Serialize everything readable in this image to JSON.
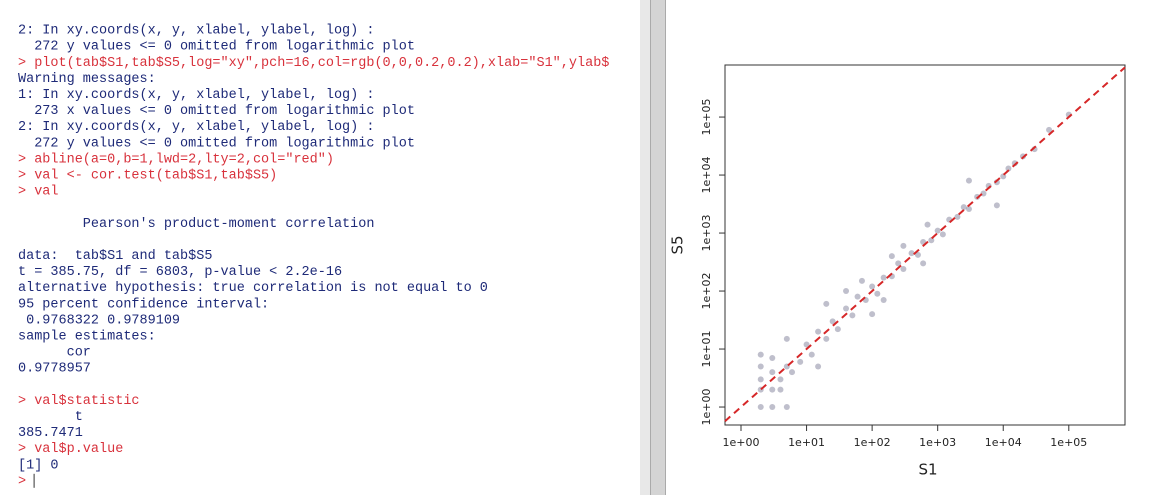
{
  "console": {
    "blocks": [
      [
        "2: In xy.coords(x, y, xlabel, ylabel, log) :",
        "  272 y values <= 0 omitted from logarithmic plot",
        "> plot(tab$S1,tab$S5,log=\"xy\",pch=16,col=rgb(0,0,0.2,0.2),xlab=\"S1\",ylab$",
        "Warning messages:",
        "1: In xy.coords(x, y, xlabel, ylabel, log) :",
        "  273 x values <= 0 omitted from logarithmic plot",
        "2: In xy.coords(x, y, xlabel, ylabel, log) :",
        "  272 y values <= 0 omitted from logarithmic plot",
        "> abline(a=0,b=1,lwd=2,lty=2,col=\"red\")",
        "> val <- cor.test(tab$S1,tab$S5)",
        "> val"
      ],
      [
        "        Pearson's product-moment correlation"
      ],
      [
        "data:  tab$S1 and tab$S5",
        "t = 385.75, df = 6803, p-value < 2.2e-16",
        "alternative hypothesis: true correlation is not equal to 0",
        "95 percent confidence interval:",
        " 0.9768322 0.9789109",
        "sample estimates:",
        "      cor",
        "0.9778957"
      ],
      [
        "> val$statistic",
        "       t",
        "385.7471",
        "> val$p.value",
        "[1] 0",
        ">"
      ]
    ]
  },
  "chart_data": {
    "type": "scatter",
    "xlabel": "S1",
    "ylabel": "S5",
    "log_x": true,
    "log_y": true,
    "color": "rgba(0,0,51,0.25)",
    "line_color": "#d62728",
    "xlim": [
      0.57,
      720000
    ],
    "ylim": [
      0.49,
      790000
    ],
    "xticks": [
      {
        "value": 1,
        "label": "1e+00"
      },
      {
        "value": 10,
        "label": "1e+01"
      },
      {
        "value": 100,
        "label": "1e+02"
      },
      {
        "value": 1000,
        "label": "1e+03"
      },
      {
        "value": 10000,
        "label": "1e+04"
      },
      {
        "value": 100000,
        "label": "1e+05"
      }
    ],
    "yticks": [
      {
        "value": 1,
        "label": "1e+00"
      },
      {
        "value": 10,
        "label": "1e+01"
      },
      {
        "value": 100,
        "label": "1e+02"
      },
      {
        "value": 1000,
        "label": "1e+03"
      },
      {
        "value": 10000,
        "label": "1e+04"
      },
      {
        "value": 100000,
        "label": "1e+05"
      }
    ],
    "x": [
      2,
      2,
      2,
      2,
      3,
      3,
      3,
      4,
      4,
      5,
      6,
      2,
      5,
      3,
      8,
      10,
      12,
      15,
      20,
      25,
      30,
      40,
      50,
      60,
      80,
      100,
      120,
      150,
      200,
      250,
      300,
      400,
      500,
      600,
      800,
      1000,
      1200,
      1500,
      2000,
      2500,
      3000,
      4000,
      5000,
      6000,
      8000,
      10000,
      12000,
      15000,
      20000,
      30000,
      50000,
      100000,
      300,
      600,
      40,
      100,
      20,
      3000,
      8000,
      200,
      700,
      70,
      5,
      15,
      150
    ],
    "values": [
      1,
      2,
      3,
      5,
      1,
      2,
      4,
      2,
      3,
      5,
      4,
      8,
      1,
      7,
      6,
      12,
      8,
      20,
      15,
      30,
      22,
      50,
      38,
      80,
      70,
      120,
      90,
      170,
      180,
      300,
      240,
      450,
      420,
      700,
      750,
      1100,
      950,
      1700,
      1900,
      2800,
      2600,
      4200,
      4800,
      6500,
      7500,
      9500,
      13000,
      16000,
      21000,
      28000,
      60000,
      110000,
      600,
      300,
      100,
      40,
      60,
      8000,
      3000,
      400,
      1400,
      150,
      15,
      5,
      70
    ]
  }
}
